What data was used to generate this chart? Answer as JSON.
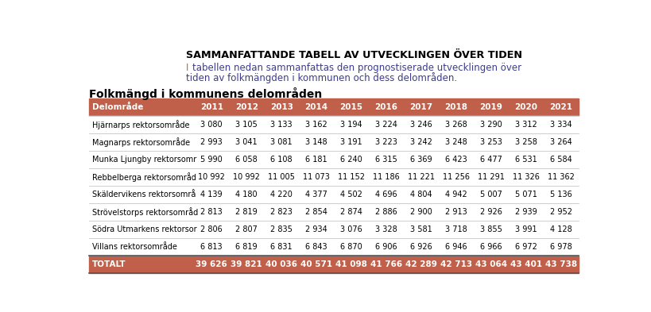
{
  "title": "SAMMANFATTANDE TABELL AV UTVECKLINGEN ÖVER TIDEN",
  "subtitle_line1": "tabellen nedan sammanfattas den prognostiserade utvecklingen över",
  "subtitle_line2": "tiden av folkmängden i kommunen och dess delområden.",
  "section_title": "Folkmängd i kommunens delområden",
  "columns": [
    "Delområde",
    "2011",
    "2012",
    "2013",
    "2014",
    "2015",
    "2016",
    "2017",
    "2018",
    "2019",
    "2020",
    "2021"
  ],
  "rows": [
    [
      "Hjärnarps rektorsområde",
      "3 080",
      "3 105",
      "3 133",
      "3 162",
      "3 194",
      "3 224",
      "3 246",
      "3 268",
      "3 290",
      "3 312",
      "3 334"
    ],
    [
      "Magnarps rektorsområde",
      "2 993",
      "3 041",
      "3 081",
      "3 148",
      "3 191",
      "3 223",
      "3 242",
      "3 248",
      "3 253",
      "3 258",
      "3 264"
    ],
    [
      "Munka Ljungby rektorsomr",
      "5 990",
      "6 058",
      "6 108",
      "6 181",
      "6 240",
      "6 315",
      "6 369",
      "6 423",
      "6 477",
      "6 531",
      "6 584"
    ],
    [
      "Rebbelberga rektorsområd",
      "10 992",
      "10 992",
      "11 005",
      "11 073",
      "11 152",
      "11 186",
      "11 221",
      "11 256",
      "11 291",
      "11 326",
      "11 362"
    ],
    [
      "Skäldervikens rektorsområ",
      "4 139",
      "4 180",
      "4 220",
      "4 377",
      "4 502",
      "4 696",
      "4 804",
      "4 942",
      "5 007",
      "5 071",
      "5 136"
    ],
    [
      "Strövelstorps rektorsområd",
      "2 813",
      "2 819",
      "2 823",
      "2 854",
      "2 874",
      "2 886",
      "2 900",
      "2 913",
      "2 926",
      "2 939",
      "2 952"
    ],
    [
      "Södra Utmarkens rektorsor",
      "2 806",
      "2 807",
      "2 835",
      "2 934",
      "3 076",
      "3 328",
      "3 581",
      "3 718",
      "3 855",
      "3 991",
      "4 128"
    ],
    [
      "Villans rektorsområde",
      "6 813",
      "6 819",
      "6 831",
      "6 843",
      "6 870",
      "6 906",
      "6 926",
      "6 946",
      "6 966",
      "6 972",
      "6 978"
    ]
  ],
  "total_row": [
    "TOTALT",
    "39 626",
    "39 821",
    "40 036",
    "40 571",
    "41 098",
    "41 766",
    "42 289",
    "42 713",
    "43 064",
    "43 401",
    "43 738"
  ],
  "header_bg": "#c0604a",
  "header_text": "#ffffff",
  "total_bg": "#c0604a",
  "total_text": "#ffffff",
  "row_text_color": "#000000",
  "title_color": "#000000",
  "subtitle_color": "#3c3c8c",
  "subtitle_i_color": "#c0604a",
  "section_title_color": "#000000",
  "bg_color": "#ffffff",
  "line_color": "#bbbbbb",
  "border_color": "#555555"
}
